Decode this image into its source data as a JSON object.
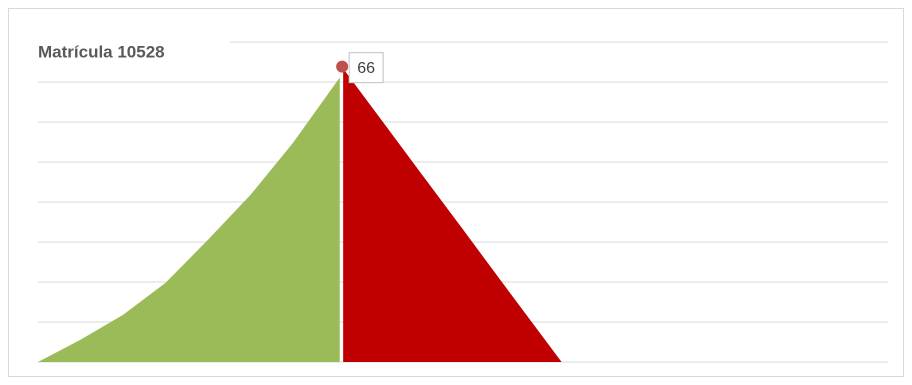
{
  "chart_data": {
    "type": "area",
    "title": "Matrícula 10528",
    "xlim": [
      0,
      100
    ],
    "ylim": [
      0,
      72
    ],
    "yticks": [
      0,
      9,
      18,
      27,
      36,
      45,
      54,
      63,
      72
    ],
    "grid": true,
    "series": [
      {
        "color": "#9bbb59",
        "x": [
          0,
          5,
          10,
          15,
          20,
          25,
          30,
          35.5
        ],
        "values": [
          0,
          5,
          10.6,
          17.8,
          27.5,
          37.6,
          49.3,
          64
        ]
      },
      {
        "color": "#c00000",
        "x": [
          35.9,
          40,
          45,
          50,
          55,
          61.6
        ],
        "values": [
          66,
          55.5,
          42.6,
          29.8,
          16.9,
          0
        ]
      }
    ],
    "data_label": {
      "series": 1,
      "index": 0
    }
  }
}
